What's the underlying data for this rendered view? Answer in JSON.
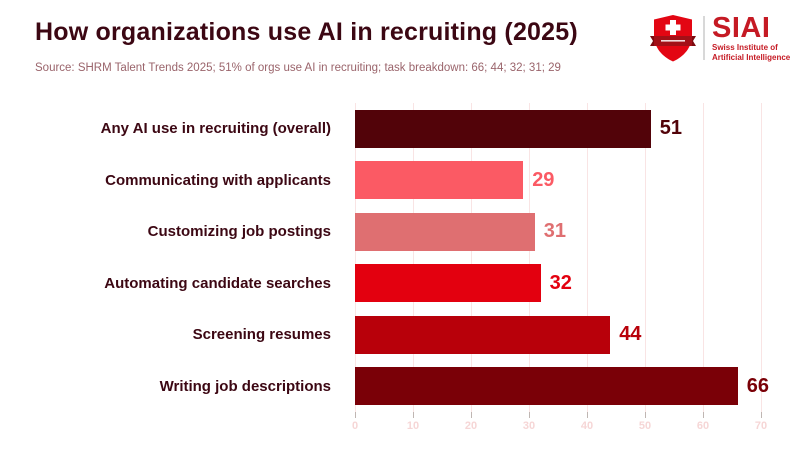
{
  "header": {
    "title": "How organizations use AI in recruiting (2025)",
    "source": "Source: SHRM Talent Trends 2025; 51% of orgs use AI in recruiting; task breakdown: 66; 44; 32; 31; 29"
  },
  "logo": {
    "acronym": "SIAI",
    "line1": "Swiss Institute of",
    "line2": "Artificial Intelligence",
    "icon": "swiss-shield-icon",
    "brand_color": "#c51a24",
    "shield_color": "#e30613",
    "ribbon_color": "#a31017"
  },
  "chart_data": {
    "type": "bar",
    "orientation": "horizontal",
    "title": "How organizations use AI in recruiting (2025)",
    "categories": [
      "Any AI use in recruiting (overall)",
      "Communicating with applicants",
      "Customizing job postings",
      "Automating candidate searches",
      "Screening resumes",
      "Writing job descriptions"
    ],
    "values": [
      51,
      29,
      31,
      32,
      44,
      66
    ],
    "bar_colors": [
      "#520309",
      "#fb5a64",
      "#df6f71",
      "#e3000f",
      "#b8000a",
      "#7a0007"
    ],
    "value_labels": true,
    "xlim": [
      0,
      70
    ],
    "x_ticks": [
      0,
      10,
      20,
      30,
      40,
      50,
      60,
      70
    ],
    "grid": true,
    "gridline_color": "#f9e4e4",
    "tick_label_color": "#f6d6d6",
    "category_label_color": "#3c0713",
    "legend": false,
    "xlabel": "",
    "ylabel": ""
  }
}
